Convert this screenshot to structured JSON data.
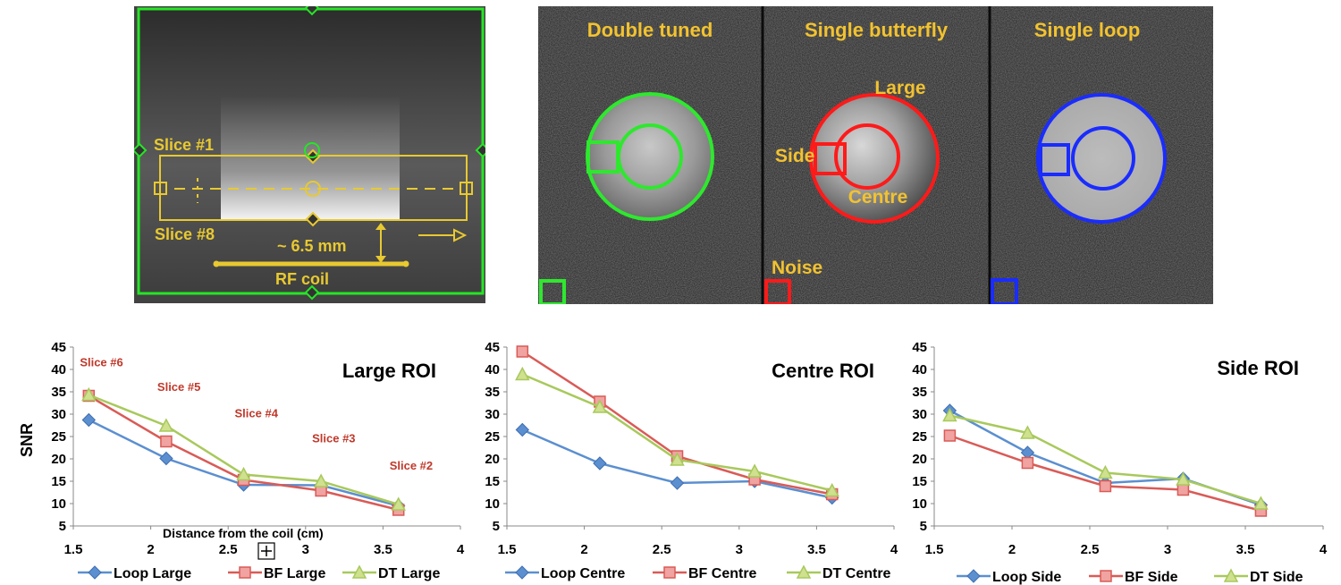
{
  "diagram": {
    "slice_first": "Slice #1",
    "slice_last": "Slice #8",
    "distance": "~ 6.5 mm",
    "coil": "RF coil"
  },
  "mri": {
    "panels": [
      {
        "label": "Double tuned",
        "color": "#2ee82e"
      },
      {
        "label": "Single butterfly",
        "color": "#ff1a1a"
      },
      {
        "label": "Single loop",
        "color": "#1a2cff"
      }
    ],
    "roi_labels": {
      "large": "Large",
      "side": "Side",
      "centre": "Centre",
      "noise": "Noise"
    },
    "label_color": "#f2c230"
  },
  "chart_data": [
    {
      "type": "line",
      "title": "Large ROI",
      "ylabel": "SNR",
      "xlabel": "Distance from the coil (cm)",
      "xlim": [
        1.5,
        4
      ],
      "ylim": [
        5,
        45
      ],
      "xticks": [
        "1.5",
        "2",
        "2.5",
        "3",
        "3.5",
        "4"
      ],
      "yticks": [
        "5",
        "10",
        "15",
        "20",
        "25",
        "30",
        "35",
        "40",
        "45"
      ],
      "x": [
        1.6,
        2.1,
        2.6,
        3.1,
        3.6
      ],
      "series": [
        {
          "name": "Loop Large",
          "color": "#5b8fd0",
          "marker": "diamond",
          "values": [
            28.7,
            20.1,
            14.2,
            14.1,
            9.5
          ]
        },
        {
          "name": "BF Large",
          "color": "#d95b57",
          "marker": "square",
          "values": [
            34.1,
            23.9,
            15.3,
            12.9,
            8.6
          ]
        },
        {
          "name": "DT Large",
          "color": "#a8c95c",
          "marker": "triangle",
          "values": [
            34.3,
            27.4,
            16.5,
            15.0,
            9.8
          ]
        }
      ],
      "annotations": [
        {
          "text": "Slice #6",
          "x": 1.6,
          "y": 40.7
        },
        {
          "text": "Slice #5",
          "x": 2.1,
          "y": 35.2
        },
        {
          "text": "Slice #4",
          "x": 2.6,
          "y": 29.3
        },
        {
          "text": "Slice #3",
          "x": 3.1,
          "y": 23.7
        },
        {
          "text": "Slice #2",
          "x": 3.6,
          "y": 17.6
        }
      ]
    },
    {
      "type": "line",
      "title": "Centre ROI",
      "ylabel": "",
      "xlabel": "",
      "xlim": [
        1.5,
        4
      ],
      "ylim": [
        5,
        45
      ],
      "xticks": [
        "1.5",
        "2",
        "2.5",
        "3",
        "3.5",
        "4"
      ],
      "yticks": [
        "5",
        "10",
        "15",
        "20",
        "25",
        "30",
        "35",
        "40",
        "45"
      ],
      "x": [
        1.6,
        2.1,
        2.6,
        3.1,
        3.6
      ],
      "series": [
        {
          "name": "Loop Centre",
          "color": "#5b8fd0",
          "marker": "diamond",
          "values": [
            26.5,
            19.0,
            14.6,
            15.0,
            11.3
          ]
        },
        {
          "name": "BF Centre",
          "color": "#d95b57",
          "marker": "square",
          "values": [
            44.0,
            32.8,
            20.6,
            15.4,
            12.1
          ]
        },
        {
          "name": "DT Centre",
          "color": "#a8c95c",
          "marker": "triangle",
          "values": [
            38.9,
            31.6,
            19.8,
            17.2,
            12.9
          ]
        }
      ],
      "annotations": []
    },
    {
      "type": "line",
      "title": "Side ROI",
      "ylabel": "",
      "xlabel": "",
      "xlim": [
        1.5,
        4
      ],
      "ylim": [
        5,
        45
      ],
      "xticks": [
        "1.5",
        "2",
        "2.5",
        "3",
        "3.5",
        "4"
      ],
      "yticks": [
        "5",
        "10",
        "15",
        "20",
        "25",
        "30",
        "35",
        "40",
        "45"
      ],
      "x": [
        1.6,
        2.1,
        2.6,
        3.1,
        3.6
      ],
      "series": [
        {
          "name": "Loop Side",
          "color": "#5b8fd0",
          "marker": "diamond",
          "values": [
            30.8,
            21.4,
            14.6,
            15.6,
            9.7
          ]
        },
        {
          "name": "BF Side",
          "color": "#d95b57",
          "marker": "square",
          "values": [
            25.2,
            19.1,
            13.9,
            13.1,
            8.4
          ]
        },
        {
          "name": "DT Side",
          "color": "#a8c95c",
          "marker": "triangle",
          "values": [
            29.7,
            25.8,
            16.9,
            15.4,
            10.0
          ]
        }
      ],
      "annotations": []
    }
  ]
}
